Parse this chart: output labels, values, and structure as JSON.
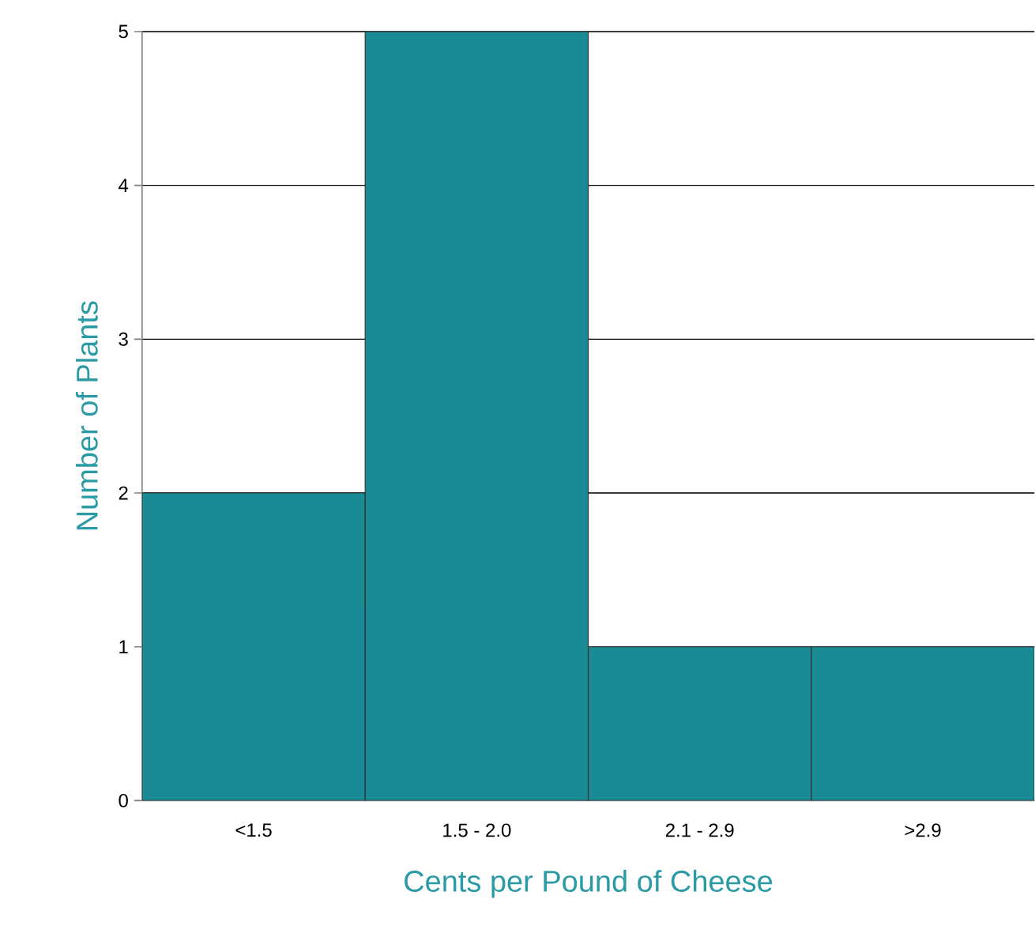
{
  "chart_data": {
    "type": "bar",
    "xlabel": "Cents per Pound of Cheese",
    "ylabel": "Number of Plants",
    "categories": [
      "<1.5",
      "1.5 - 2.0",
      "2.1 - 2.9",
      ">2.9"
    ],
    "values": [
      2,
      5,
      1,
      1
    ],
    "color": "#1a8a95",
    "ylim": [
      0,
      5
    ],
    "yticks": [
      0,
      1,
      2,
      3,
      4,
      5
    ],
    "grid": "y"
  }
}
